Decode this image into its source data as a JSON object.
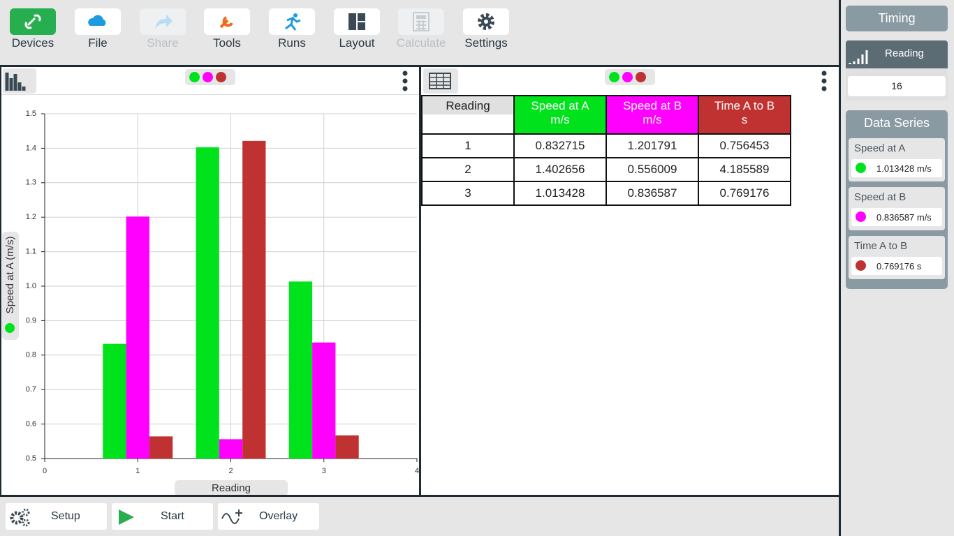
{
  "toolbar": {
    "buttons": [
      "Devices",
      "File",
      "Share",
      "Tools",
      "Runs",
      "Layout",
      "Calculate",
      "Settings"
    ]
  },
  "chart_data": {
    "type": "bar",
    "x": [
      1,
      2,
      3
    ],
    "xlabel": "Reading",
    "ylabel": "Speed at A (m/s)",
    "xlim": [
      0,
      4
    ],
    "xticks": [
      0,
      1,
      2,
      3,
      4
    ],
    "ylim": [
      0.5,
      1.5
    ],
    "yticks": [
      0.5,
      0.6,
      0.7,
      0.8,
      0.9,
      {
        "value": 1,
        "label": "1.0"
      },
      1.1,
      1.2,
      1.3,
      1.4,
      1.5
    ],
    "y2lim": [
      0.5,
      4.5
    ],
    "grid": true,
    "series": [
      {
        "name": "Speed at A",
        "unit": "m/s",
        "color": "#00e31c",
        "values": [
          0.832715,
          1.402656,
          1.013428
        ]
      },
      {
        "name": "Speed at B",
        "unit": "m/s",
        "color": "#ff00ff",
        "values": [
          1.201791,
          0.556009,
          0.836587
        ]
      },
      {
        "name": "Time A to B",
        "unit": "s",
        "color": "#c03232",
        "axis": "y2",
        "values": [
          0.756453,
          4.185589,
          0.769176
        ]
      }
    ]
  },
  "sidebar": {
    "title": "Timing",
    "mode": "Reading",
    "mode_value": "16",
    "series_title": "Data Series"
  },
  "bottom_bar": {
    "buttons": [
      "Setup",
      "Start",
      "Overlay"
    ]
  }
}
